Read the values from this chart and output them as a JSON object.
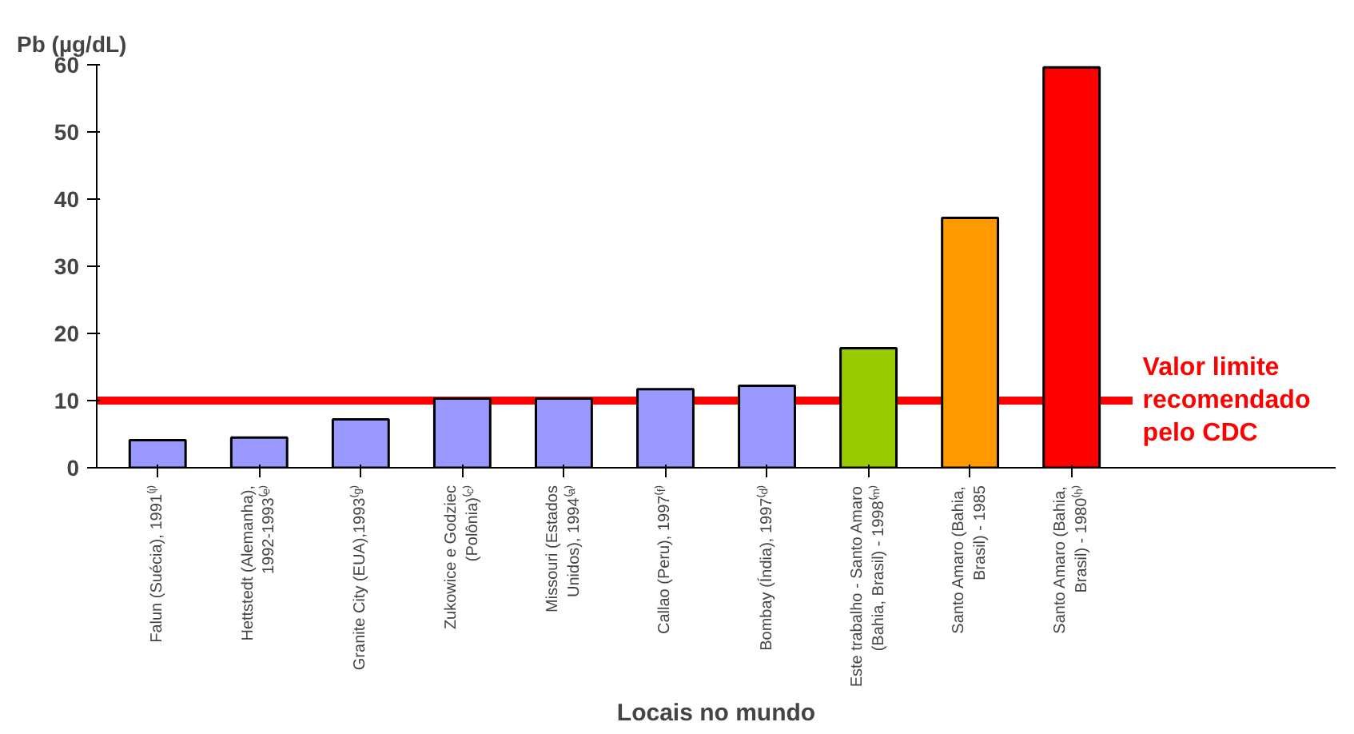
{
  "chart_data": {
    "type": "bar",
    "categories": [
      "Falun (Suécia), 1991⁽ˡ⁾",
      "Hettstedt (Alemanha),\n1992-1993⁽ᵉ⁾",
      "Granite City (EUA),1993⁽ᵍ⁾",
      "Zukowice e Godziec\n(Polônia)⁽ᶜ⁾",
      "Missouri (Estados\nUnidos), 1994⁽ᵃ⁾",
      "Callao (Peru), 1997⁽ᶠ⁾",
      "Bombay (Índia), 1997⁽ᵈ⁾",
      "Este trabalho - Santo Amaro\n(Bahia, Brasil) - 1998⁽ᵐ⁾",
      "Santo Amaro (Bahia,\nBrasil) - 1985",
      "Santo Amaro (Bahia,\nBrasil) - 1980⁽ʰ⁾"
    ],
    "values": [
      4.1,
      4.5,
      7.2,
      10.3,
      10.3,
      11.7,
      12.2,
      17.8,
      37.2,
      59.6
    ],
    "colors": [
      "#9999ff",
      "#9999ff",
      "#9999ff",
      "#9999ff",
      "#9999ff",
      "#9999ff",
      "#9999ff",
      "#99cc00",
      "#ff9900",
      "#ff0000"
    ],
    "ylabel": "Pb (µg/dL)",
    "xlabel": "Locais no mundo",
    "ylim": [
      0,
      60
    ],
    "yticks": [
      0,
      10,
      20,
      30,
      40,
      50,
      60
    ],
    "ref_lines": [
      {
        "axis": "y",
        "value": 10,
        "label": "Valor limite\nrecomendado\npelo CDC",
        "color": "#ff0000"
      }
    ],
    "grid": false
  }
}
